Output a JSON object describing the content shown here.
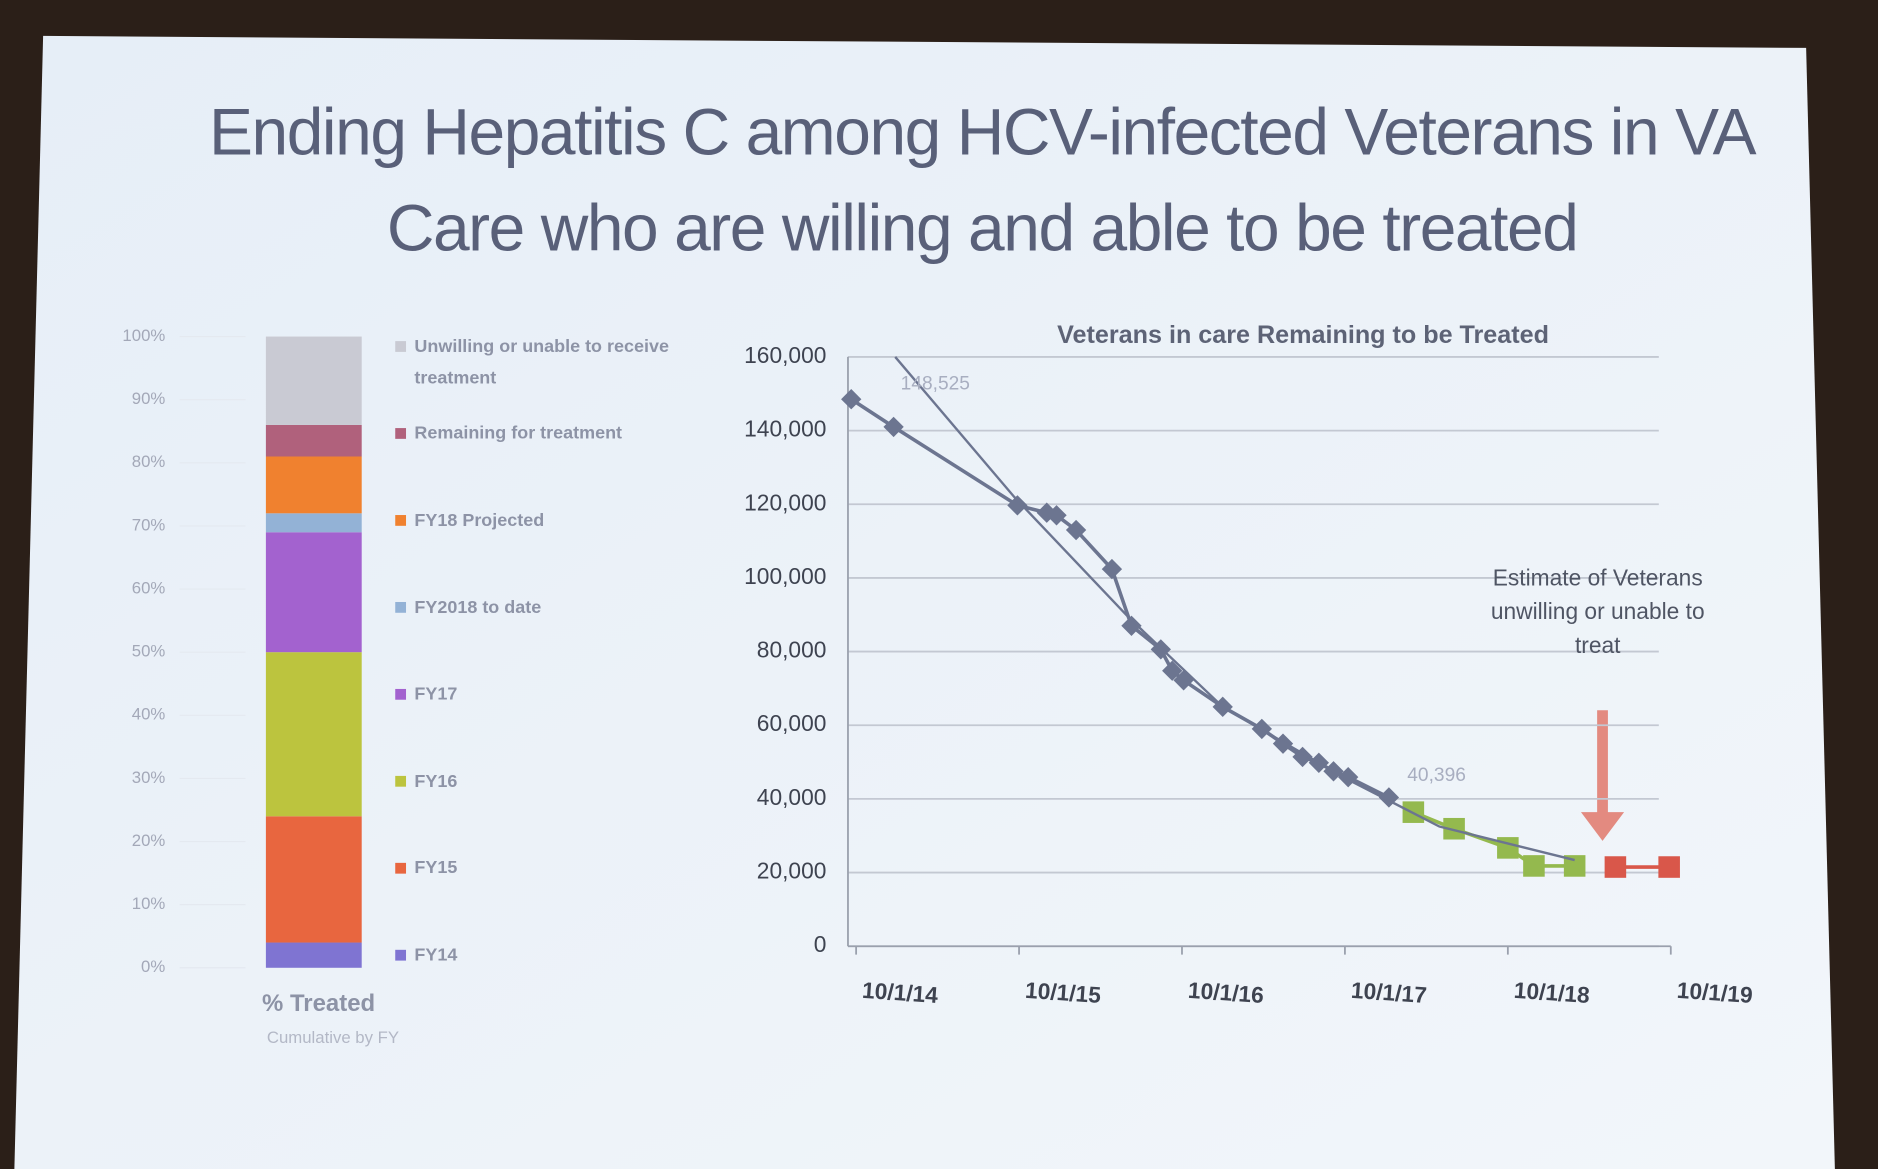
{
  "title": "Ending Hepatitis C among HCV-infected Veterans in VA Care who are willing and able to be treated",
  "chart_data": [
    {
      "type": "stacked_bar",
      "categories": [
        null
      ],
      "xlabel": "% Treated",
      "subtitle": "Cumulative by FY",
      "ylim": [
        0,
        100
      ],
      "yticks": [
        {
          "value": 0,
          "label": "0%"
        },
        {
          "value": 10,
          "label": "10%"
        },
        {
          "value": 20,
          "label": "20%"
        },
        {
          "value": 30,
          "label": "30%"
        },
        {
          "value": 40,
          "label": "40%"
        },
        {
          "value": 50,
          "label": "50%"
        },
        {
          "value": 60,
          "label": "60%"
        },
        {
          "value": 70,
          "label": "70%"
        },
        {
          "value": 80,
          "label": "80%"
        },
        {
          "value": 90,
          "label": "90%"
        },
        {
          "value": 100,
          "label": "100%"
        }
      ],
      "series": [
        {
          "name": "FY14",
          "color": "#7f74d2",
          "values": [
            4
          ]
        },
        {
          "name": "FY15",
          "color": "#e8663f",
          "values": [
            20
          ]
        },
        {
          "name": "FY16",
          "color": "#bcc43e",
          "values": [
            26
          ]
        },
        {
          "name": "FY17",
          "color": "#a362cf",
          "values": [
            19
          ]
        },
        {
          "name": "FY2018 to date",
          "color": "#93b2d6",
          "values": [
            3
          ]
        },
        {
          "name": "FY18 Projected",
          "color": "#f0812f",
          "values": [
            9
          ]
        },
        {
          "name": "Remaining for treatment",
          "color": "#b0617c",
          "values": [
            5
          ]
        },
        {
          "name": "Unwilling or unable to receive treatment",
          "color": "#c9cad3",
          "values": [
            14
          ]
        }
      ]
    },
    {
      "type": "line",
      "title": "Veterans in care Remaining to be Treated",
      "xlim": [
        2014.7,
        2019.75
      ],
      "xticks": [
        {
          "value": 2014.75,
          "label": "10/1/14"
        },
        {
          "value": 2015.75,
          "label": "10/1/15"
        },
        {
          "value": 2016.75,
          "label": "10/1/16"
        },
        {
          "value": 2017.75,
          "label": "10/1/17"
        },
        {
          "value": 2018.75,
          "label": "10/1/18"
        },
        {
          "value": 2019.75,
          "label": "10/1/19"
        }
      ],
      "ylim": [
        0,
        160000
      ],
      "yticks": [
        0,
        {
          "value": 20000,
          "label": "20,000"
        },
        {
          "value": 40000,
          "label": "40,000"
        },
        {
          "value": 60000,
          "label": "60,000"
        },
        {
          "value": 80000,
          "label": "80,000"
        },
        {
          "value": 100000,
          "label": "100,000"
        },
        {
          "value": 120000,
          "label": "120,000"
        },
        {
          "value": 140000,
          "label": "140,000"
        },
        {
          "value": 160000,
          "label": "160,000"
        }
      ],
      "grid": true,
      "series": [
        {
          "color": "#6c7590",
          "marker": "diamond",
          "x": [
            2014.72,
            2014.98,
            2015.74,
            2015.92,
            2015.98,
            2016.1,
            2016.32,
            2016.44,
            2016.62,
            2016.69,
            2016.76,
            2017.0,
            2017.24,
            2017.37,
            2017.49,
            2017.59,
            2017.68,
            2017.77,
            2018.02
          ],
          "values": [
            148525,
            141000,
            119700,
            117700,
            117000,
            113000,
            102400,
            87000,
            80600,
            74800,
            72200,
            65000,
            59000,
            55000,
            51400,
            49800,
            47500,
            45900,
            40396
          ]
        },
        {
          "color": "#94b94e",
          "marker": "square",
          "x": [
            2018.17,
            2018.42,
            2018.75,
            2018.91,
            2019.16
          ],
          "values": [
            36400,
            31900,
            26700,
            21800,
            21800
          ]
        },
        {
          "color": "#d9574a",
          "marker": "square",
          "x": [
            2019.41,
            2019.74
          ],
          "values": [
            21500,
            21500
          ]
        },
        {
          "color": "#6c7590",
          "marker": "none",
          "x": [
            2014.99,
            2015.72,
            2016.42,
            2017.0,
            2017.74,
            2018.33,
            2019.16
          ],
          "values": [
            160000,
            122000,
            89400,
            65000,
            45900,
            32500,
            23400
          ]
        }
      ],
      "annotations": [
        "148,525",
        "40,396",
        "Estimate of Veterans unwilling or unable to treat"
      ]
    }
  ]
}
